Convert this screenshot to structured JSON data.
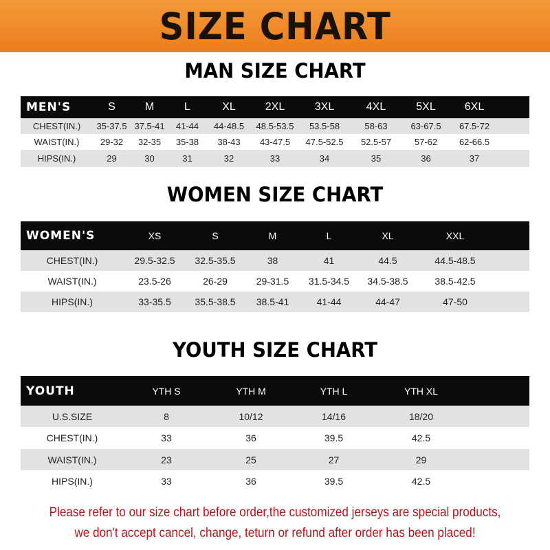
{
  "banner_title": "SIZE CHART",
  "men": {
    "title": "MAN SIZE CHART",
    "header": [
      "MEN'S",
      "S",
      "M",
      "L",
      "XL",
      "2XL",
      "3XL",
      "4XL",
      "5XL",
      "6XL"
    ],
    "rows": [
      [
        "CHEST(IN.)",
        "35-37.5",
        "37.5-41",
        "41-44",
        "44-48.5",
        "48.5-53.5",
        "53.5-58",
        "58-63",
        "63-67.5",
        "67.5-72"
      ],
      [
        "WAIST(IN.)",
        "29-32",
        "32-35",
        "35-38",
        "38-43",
        "43-47.5",
        "47.5-52.5",
        "52.5-57",
        "57-62",
        "62-66.5"
      ],
      [
        "HIPS(IN.)",
        "29",
        "30",
        "31",
        "32",
        "33",
        "34",
        "35",
        "36",
        "37"
      ]
    ]
  },
  "women": {
    "title": "WOMEN SIZE CHART",
    "header": [
      "WOMEN'S",
      "XS",
      "S",
      "M",
      "L",
      "XL",
      "XXL"
    ],
    "rows": [
      [
        "CHEST(IN.)",
        "29.5-32.5",
        "32.5-35.5",
        "38",
        "41",
        "44.5",
        "44.5-48.5"
      ],
      [
        "WAIST(IN.)",
        "23.5-26",
        "26-29",
        "29-31.5",
        "31.5-34.5",
        "34.5-38.5",
        "38.5-42.5"
      ],
      [
        "HIPS(IN.)",
        "33-35.5",
        "35.5-38.5",
        "38.5-41",
        "41-44",
        "44-47",
        "47-50"
      ]
    ]
  },
  "youth": {
    "title": "YOUTH SIZE CHART",
    "header": [
      "YOUTH",
      "YTH S",
      "YTH M",
      "YTH L",
      "YTH XL"
    ],
    "rows": [
      [
        "U.S.SIZE",
        "8",
        "10/12",
        "14/16",
        "18/20"
      ],
      [
        "CHEST(IN.)",
        "33",
        "36",
        "39.5",
        "42.5"
      ],
      [
        "WAIST(IN.)",
        "23",
        "25",
        "27",
        "29"
      ],
      [
        "HIPS(IN.)",
        "33",
        "36",
        "39.5",
        "42.5"
      ]
    ]
  },
  "footer": {
    "line1": "Please refer to our size chart before order,the customized jerseys are special products,",
    "line2": "we don't accept cancel, change, teturn or refund after order has been placed!"
  },
  "colors": {
    "banner": "#ec7d1c",
    "header_row": "#0b0b0b",
    "stripe": "#e2e2e2",
    "notice": "#b3151c"
  }
}
